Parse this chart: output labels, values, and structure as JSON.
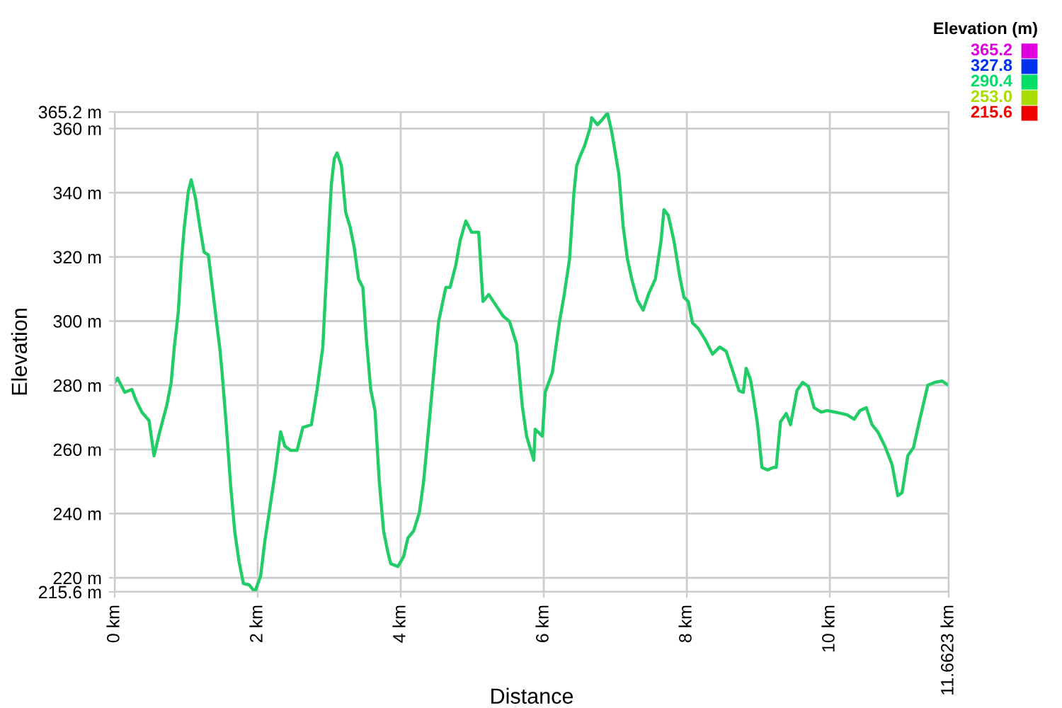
{
  "chart_data": {
    "type": "line",
    "xlabel": "Distance",
    "ylabel": "Elevation",
    "clabel": "Elevation (m)",
    "xlim": [
      0,
      11.6623
    ],
    "ylim": [
      215.6,
      365.2
    ],
    "xticks": [
      {
        "value": 0,
        "label": "0 km"
      },
      {
        "value": 2,
        "label": "2 km"
      },
      {
        "value": 4,
        "label": "4 km"
      },
      {
        "value": 6,
        "label": "6 km"
      },
      {
        "value": 8,
        "label": "8 km"
      },
      {
        "value": 10,
        "label": "10 km"
      },
      {
        "value": 11.6623,
        "label": "11.6623 km"
      }
    ],
    "yticks": [
      {
        "value": 215.6,
        "label": "215.6 m"
      },
      {
        "value": 220,
        "label": "220 m"
      },
      {
        "value": 240,
        "label": "240 m"
      },
      {
        "value": 260,
        "label": "260 m"
      },
      {
        "value": 280,
        "label": "280 m"
      },
      {
        "value": 300,
        "label": "300 m"
      },
      {
        "value": 320,
        "label": "320 m"
      },
      {
        "value": 340,
        "label": "340 m"
      },
      {
        "value": 360,
        "label": "360 m"
      },
      {
        "value": 365.2,
        "label": "365.2 m"
      }
    ],
    "clim": [
      215.6,
      365.2
    ],
    "cticks": [
      {
        "value": 365.2,
        "label": "365.2"
      },
      {
        "value": 327.8,
        "label": "327.8"
      },
      {
        "value": 290.4,
        "label": "290.4"
      },
      {
        "value": 253.0,
        "label": "253.0"
      },
      {
        "value": 215.6,
        "label": "215.6"
      }
    ],
    "colors": [
      "#dd00dd",
      "#0033ee",
      "#00dd66",
      "#aadd00",
      "#ee0000"
    ],
    "grid": true,
    "x": [
      0,
      0.04,
      0.14,
      0.24,
      0.3,
      0.38,
      0.48,
      0.55,
      0.63,
      0.73,
      0.79,
      0.83,
      0.89,
      0.93,
      0.97,
      1.03,
      1.07,
      1.13,
      1.19,
      1.25,
      1.31,
      1.37,
      1.43,
      1.47,
      1.5,
      1.56,
      1.62,
      1.68,
      1.74,
      1.8,
      1.88,
      1.96,
      2.04,
      2.1,
      2.16,
      2.24,
      2.32,
      2.38,
      2.46,
      2.55,
      2.63,
      2.75,
      2.83,
      2.91,
      2.95,
      2.99,
      3.03,
      3.07,
      3.11,
      3.17,
      3.23,
      3.29,
      3.35,
      3.41,
      3.47,
      3.52,
      3.58,
      3.64,
      3.7,
      3.76,
      3.82,
      3.86,
      3.96,
      4.04,
      4.1,
      4.18,
      4.26,
      4.32,
      4.4,
      4.48,
      4.53,
      4.63,
      4.69,
      4.77,
      4.83,
      4.91,
      4.99,
      5.09,
      5.15,
      5.23,
      5.43,
      5.52,
      5.62,
      5.7,
      5.76,
      5.86,
      5.88,
      5.98,
      6.02,
      6.12,
      6.22,
      6.28,
      6.36,
      6.42,
      6.46,
      6.51,
      6.57,
      6.65,
      6.67,
      6.75,
      6.81,
      6.89,
      6.95,
      7.05,
      7.11,
      7.17,
      7.23,
      7.31,
      7.39,
      7.47,
      7.56,
      7.64,
      7.68,
      7.74,
      7.82,
      7.9,
      7.96,
      8.02,
      8.08,
      8.16,
      8.26,
      8.36,
      8.46,
      8.55,
      8.63,
      8.73,
      8.79,
      8.83,
      8.89,
      8.93,
      8.99,
      9.05,
      9.13,
      9.21,
      9.25,
      9.31,
      9.39,
      9.45,
      9.54,
      9.62,
      9.7,
      9.78,
      9.88,
      9.96,
      10.08,
      10.24,
      10.34,
      10.42,
      10.51,
      10.59,
      10.67,
      10.77,
      10.87,
      10.95,
      11.01,
      11.09,
      11.17,
      11.25,
      11.31,
      11.37,
      11.47,
      11.57,
      11.66
    ],
    "series": [
      {
        "color": "#22cc66",
        "values": [
          280.9,
          282.2,
          277.8,
          278.7,
          275.2,
          271.6,
          269.0,
          258.0,
          265.5,
          273.9,
          280.9,
          291.1,
          303.0,
          317.5,
          328.6,
          340.5,
          344.0,
          338.3,
          329.5,
          321.5,
          320.6,
          309.6,
          298.6,
          291.5,
          284.4,
          267.7,
          249.1,
          234.1,
          224.9,
          218.2,
          217.8,
          215.6,
          220.5,
          231.5,
          240.3,
          252.2,
          265.5,
          261.0,
          259.7,
          259.7,
          266.8,
          267.7,
          278.7,
          291.9,
          309.6,
          326.4,
          342.7,
          350.6,
          352.4,
          348.4,
          333.9,
          329.5,
          322.8,
          313.1,
          310.5,
          294.1,
          278.7,
          272.1,
          250.0,
          234.6,
          227.9,
          224.4,
          223.5,
          226.6,
          232.4,
          234.6,
          240.3,
          250.0,
          269.0,
          288.4,
          299.9,
          310.5,
          310.5,
          317.5,
          325.0,
          331.2,
          327.7,
          327.7,
          306.1,
          308.3,
          301.6,
          299.9,
          292.8,
          273.4,
          264.1,
          256.6,
          266.3,
          264.1,
          277.8,
          284.0,
          299.9,
          307.4,
          319.3,
          339.6,
          348.4,
          351.5,
          354.6,
          360.3,
          363.4,
          361.2,
          362.6,
          364.8,
          359.0,
          345.8,
          329.5,
          319.3,
          313.1,
          306.5,
          303.4,
          308.7,
          313.1,
          325.0,
          334.7,
          333.0,
          325.0,
          314.0,
          307.4,
          306.1,
          299.4,
          297.7,
          294.1,
          289.7,
          291.9,
          290.6,
          285.3,
          278.3,
          277.8,
          285.3,
          281.8,
          276.5,
          267.7,
          254.4,
          253.6,
          254.4,
          254.4,
          268.6,
          271.2,
          267.7,
          278.3,
          280.9,
          279.6,
          273.0,
          271.6,
          272.1,
          271.6,
          270.8,
          269.4,
          272.1,
          273.0,
          267.7,
          265.5,
          261.0,
          255.3,
          245.6,
          246.5,
          258.0,
          260.6,
          268.6,
          274.3,
          280.0,
          280.9,
          281.3,
          280.0
        ]
      }
    ]
  }
}
